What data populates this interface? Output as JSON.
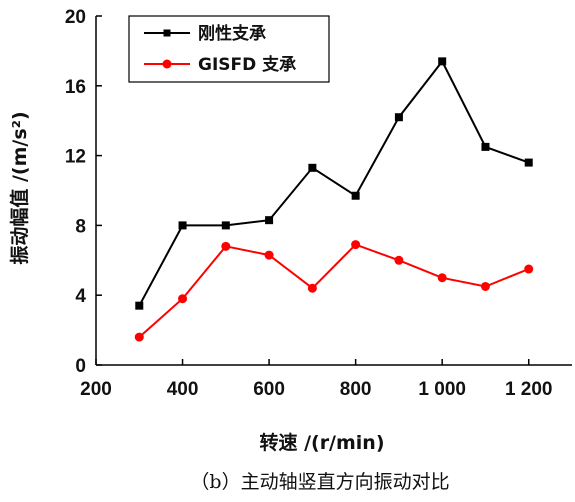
{
  "chart_data": {
    "type": "line",
    "x": [
      300,
      400,
      500,
      600,
      700,
      800,
      900,
      1000,
      1100,
      1200
    ],
    "series": [
      {
        "name": "刚性支承",
        "color": "#000000",
        "marker": "square",
        "values": [
          3.4,
          8.0,
          8.0,
          8.3,
          11.3,
          9.7,
          14.2,
          17.4,
          12.5,
          11.6
        ]
      },
      {
        "name": "GISFD 支承",
        "color": "#ff0000",
        "marker": "circle",
        "values": [
          1.6,
          3.8,
          6.8,
          6.3,
          4.4,
          6.9,
          6.0,
          5.0,
          4.5,
          5.5
        ]
      }
    ],
    "xlim": [
      200,
      1300
    ],
    "ylim": [
      0,
      20
    ],
    "xticks": [
      200,
      400,
      600,
      800,
      1000,
      1200
    ],
    "xtick_labels": [
      "200",
      "400",
      "600",
      "800",
      "1 000",
      "1 200"
    ],
    "yticks": [
      0,
      4,
      8,
      12,
      16,
      20
    ],
    "ytick_labels": [
      "0",
      "4",
      "8",
      "12",
      "16",
      "20"
    ],
    "xlabel": "转速 /(r/min)",
    "ylabel": "振动幅值 /(m/s²)",
    "legend_position": "top-left",
    "grid": false
  },
  "caption": "（b）主动轴竖直方向振动对比"
}
